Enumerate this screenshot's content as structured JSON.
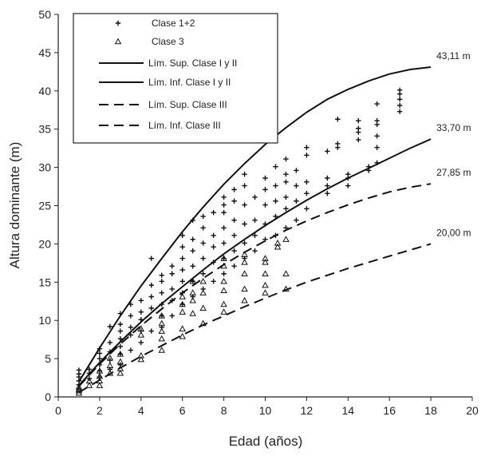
{
  "chart_data": {
    "type": "scatter",
    "xlabel": "Edad (años)",
    "ylabel": "Altura dominante (m)",
    "xlim": [
      0,
      20
    ],
    "ylim": [
      0,
      50
    ],
    "xticks": [
      0,
      2,
      4,
      6,
      8,
      10,
      12,
      14,
      16,
      18,
      20
    ],
    "yticks": [
      0,
      5,
      10,
      15,
      20,
      25,
      30,
      35,
      40,
      45,
      50
    ],
    "grid": false,
    "legend_position": "top-left",
    "legend": [
      {
        "label": "Clase 1+2",
        "marker": "plus"
      },
      {
        "label": "Clase 3",
        "marker": "triangle"
      },
      {
        "label": "Lím. Sup. Clase I y II",
        "style": "solid"
      },
      {
        "label": "Lím. Inf. Clase I y II",
        "style": "solid"
      },
      {
        "label": "Lím. Sup. Clase III",
        "style": "dashed"
      },
      {
        "label": "Lím. Inf. Clase III",
        "style": "dashed"
      }
    ],
    "curves": [
      {
        "name": "Lím. Sup. Clase I y II",
        "style": "solid",
        "end_label": "43,11 m",
        "x": [
          1,
          2,
          3,
          4,
          5,
          6,
          7,
          8,
          9,
          10,
          11,
          12,
          13,
          14,
          15,
          16,
          17,
          18
        ],
        "y": [
          2.0,
          6.4,
          10.6,
          14.5,
          18.1,
          21.6,
          24.8,
          27.8,
          30.5,
          33.0,
          35.2,
          37.2,
          38.9,
          40.2,
          41.3,
          42.2,
          42.8,
          43.11
        ]
      },
      {
        "name": "Lím. Inf. Clase I y II",
        "style": "solid",
        "end_label": "33,70 m",
        "x": [
          1,
          2,
          3,
          4,
          5,
          6,
          7,
          8,
          9,
          10,
          11,
          12,
          13,
          14,
          15,
          16,
          17,
          18
        ],
        "y": [
          1.5,
          4.5,
          7.2,
          9.8,
          12.2,
          14.4,
          16.6,
          18.7,
          20.6,
          22.4,
          24.1,
          25.7,
          27.2,
          28.6,
          29.9,
          31.2,
          32.5,
          33.7
        ]
      },
      {
        "name": "Lím. Sup. Clase III",
        "style": "dashed",
        "end_label": "27,85 m",
        "x": [
          1,
          2,
          3,
          4,
          5,
          6,
          7,
          8,
          9,
          10,
          11,
          12,
          13,
          14,
          15,
          16,
          17,
          18
        ],
        "y": [
          1.4,
          4.3,
          6.9,
          9.3,
          11.5,
          13.6,
          15.5,
          17.3,
          18.9,
          20.4,
          21.8,
          23.0,
          24.1,
          25.1,
          26.0,
          26.8,
          27.4,
          27.85
        ]
      },
      {
        "name": "Lím. Inf. Clase III",
        "style": "dashed",
        "end_label": "20,00 m",
        "x": [
          1,
          2,
          3,
          4,
          5,
          6,
          7,
          8,
          9,
          10,
          11,
          12,
          13,
          14,
          15,
          16,
          17,
          18
        ],
        "y": [
          0.6,
          2.2,
          3.8,
          5.3,
          6.7,
          8.1,
          9.4,
          10.6,
          11.8,
          12.9,
          14.0,
          15.0,
          15.9,
          16.8,
          17.6,
          18.4,
          19.2,
          20.0
        ]
      }
    ],
    "series": [
      {
        "name": "Clase 1+2",
        "marker": "plus",
        "points": [
          [
            1,
            1.6
          ],
          [
            1,
            2.1
          ],
          [
            1,
            2.6
          ],
          [
            1,
            3.0
          ],
          [
            1,
            3.5
          ],
          [
            1.5,
            2.4
          ],
          [
            1.5,
            3.1
          ],
          [
            1.5,
            3.6
          ],
          [
            2,
            2.6
          ],
          [
            2,
            3.4
          ],
          [
            2,
            4.2
          ],
          [
            2,
            5.0
          ],
          [
            2,
            5.7
          ],
          [
            2,
            6.3
          ],
          [
            2.5,
            3.6
          ],
          [
            2.5,
            4.8
          ],
          [
            2.5,
            5.9
          ],
          [
            2.5,
            7.1
          ],
          [
            2.5,
            9.2
          ],
          [
            3,
            4.2
          ],
          [
            3,
            5.6
          ],
          [
            3,
            6.6
          ],
          [
            3,
            7.6
          ],
          [
            3,
            8.6
          ],
          [
            3,
            9.5
          ],
          [
            3,
            10.9
          ],
          [
            3.5,
            6.1
          ],
          [
            3.5,
            8.1
          ],
          [
            3.5,
            9.1
          ],
          [
            3.5,
            10.6
          ],
          [
            3.5,
            12.1
          ],
          [
            4,
            7.1
          ],
          [
            4,
            8.6
          ],
          [
            4,
            10.1
          ],
          [
            4,
            11.1
          ],
          [
            4,
            12.6
          ],
          [
            4.5,
            8.6
          ],
          [
            4.5,
            11.6
          ],
          [
            4.5,
            13.1
          ],
          [
            4.5,
            14.6
          ],
          [
            4.5,
            18.1
          ],
          [
            5,
            9.1
          ],
          [
            5,
            10.6
          ],
          [
            5,
            12.1
          ],
          [
            5,
            13.6
          ],
          [
            5,
            15.1
          ],
          [
            5,
            15.9
          ],
          [
            5.5,
            10.6
          ],
          [
            5.5,
            12.6
          ],
          [
            5.5,
            14.1
          ],
          [
            5.5,
            16.1
          ],
          [
            5.5,
            17.1
          ],
          [
            6,
            12.1
          ],
          [
            6,
            13.6
          ],
          [
            6,
            15.1
          ],
          [
            6,
            16.6
          ],
          [
            6,
            18.1
          ],
          [
            6,
            19.6
          ],
          [
            6,
            21.1
          ],
          [
            6.5,
            13.1
          ],
          [
            6.5,
            15.1
          ],
          [
            6.5,
            17.1
          ],
          [
            6.5,
            19.1
          ],
          [
            6.5,
            20.6
          ],
          [
            6.5,
            23.1
          ],
          [
            7,
            14.1
          ],
          [
            7,
            16.1
          ],
          [
            7,
            18.1
          ],
          [
            7,
            20.1
          ],
          [
            7,
            22.1
          ],
          [
            7,
            23.6
          ],
          [
            7.5,
            15.1
          ],
          [
            7.5,
            17.6
          ],
          [
            7.5,
            19.6
          ],
          [
            7.5,
            21.1
          ],
          [
            7.5,
            24.1
          ],
          [
            8,
            16.1
          ],
          [
            8,
            18.1
          ],
          [
            8,
            20.1
          ],
          [
            8,
            22.1
          ],
          [
            8,
            24.1
          ],
          [
            8,
            25.1
          ],
          [
            8,
            26.1
          ],
          [
            8.5,
            17.1
          ],
          [
            8.5,
            19.1
          ],
          [
            8.5,
            21.1
          ],
          [
            8.5,
            23.1
          ],
          [
            8.5,
            25.6
          ],
          [
            8.5,
            27.1
          ],
          [
            9,
            18.1
          ],
          [
            9,
            20.1
          ],
          [
            9,
            22.6
          ],
          [
            9,
            25.1
          ],
          [
            9,
            27.6
          ],
          [
            9,
            29.1
          ],
          [
            9.5,
            19.1
          ],
          [
            9.5,
            21.1
          ],
          [
            9.5,
            23.1
          ],
          [
            9.5,
            26.1
          ],
          [
            10,
            20.6
          ],
          [
            10,
            22.6
          ],
          [
            10,
            25.1
          ],
          [
            10,
            27.1
          ],
          [
            10,
            28.6
          ],
          [
            10.5,
            21.1
          ],
          [
            10.5,
            23.6
          ],
          [
            10.5,
            25.6
          ],
          [
            10.5,
            27.6
          ],
          [
            10.5,
            30.1
          ],
          [
            11,
            22.1
          ],
          [
            11,
            24.6
          ],
          [
            11,
            26.1
          ],
          [
            11,
            28.1
          ],
          [
            11,
            29.1
          ],
          [
            11,
            31.1
          ],
          [
            11.5,
            23.1
          ],
          [
            11.5,
            25.6
          ],
          [
            11.5,
            27.6
          ],
          [
            11.5,
            29.6
          ],
          [
            12,
            24.6
          ],
          [
            12,
            26.6
          ],
          [
            12,
            28.1
          ],
          [
            12,
            31.6
          ],
          [
            12,
            32.6
          ],
          [
            13,
            26.6
          ],
          [
            13,
            27.6
          ],
          [
            13,
            28.6
          ],
          [
            13,
            32.1
          ],
          [
            13.5,
            32.6
          ],
          [
            13.5,
            33.1
          ],
          [
            13.5,
            36.3
          ],
          [
            14,
            27.6
          ],
          [
            14,
            28.6
          ],
          [
            14,
            29.1
          ],
          [
            14.5,
            33.6
          ],
          [
            14.5,
            34.6
          ],
          [
            14.5,
            35.1
          ],
          [
            14.5,
            36.1
          ],
          [
            15,
            29.6
          ],
          [
            15,
            30.1
          ],
          [
            15.4,
            30.6
          ],
          [
            15.4,
            32.6
          ],
          [
            15.4,
            34.1
          ],
          [
            15.4,
            35.6
          ],
          [
            15.4,
            36.1
          ],
          [
            15.4,
            38.3
          ],
          [
            16.5,
            37.3
          ],
          [
            16.5,
            38.1
          ],
          [
            16.5,
            38.9
          ],
          [
            16.5,
            39.6
          ],
          [
            16.5,
            40.1
          ]
        ]
      },
      {
        "name": "Clase 3",
        "marker": "triangle",
        "points": [
          [
            1,
            0.5
          ],
          [
            1,
            0.8
          ],
          [
            1,
            1.0
          ],
          [
            1,
            1.3
          ],
          [
            1.5,
            1.5
          ],
          [
            1.5,
            2.1
          ],
          [
            2,
            1.5
          ],
          [
            2,
            2.1
          ],
          [
            2,
            2.7
          ],
          [
            2,
            3.4
          ],
          [
            2.5,
            3.1
          ],
          [
            2.5,
            4.1
          ],
          [
            2.5,
            5.1
          ],
          [
            3,
            3.1
          ],
          [
            3,
            3.7
          ],
          [
            3,
            4.6
          ],
          [
            3,
            5.6
          ],
          [
            4,
            4.9
          ],
          [
            4,
            5.4
          ],
          [
            4,
            8.1
          ],
          [
            4,
            8.9
          ],
          [
            5,
            6.1
          ],
          [
            5,
            7.6
          ],
          [
            5,
            8.6
          ],
          [
            5,
            9.6
          ],
          [
            5,
            10.6
          ],
          [
            6,
            7.9
          ],
          [
            6,
            8.9
          ],
          [
            6,
            11.1
          ],
          [
            6,
            12.1
          ],
          [
            6,
            13.1
          ],
          [
            6.5,
            10.9
          ],
          [
            6.5,
            12.6
          ],
          [
            6.5,
            13.6
          ],
          [
            6.5,
            15.1
          ],
          [
            7,
            9.6
          ],
          [
            7,
            11.6
          ],
          [
            7,
            13.6
          ],
          [
            7,
            15.1
          ],
          [
            8,
            11.1
          ],
          [
            8,
            12.1
          ],
          [
            8,
            13.9
          ],
          [
            8,
            15.1
          ],
          [
            8,
            17.1
          ],
          [
            8,
            18.1
          ],
          [
            9,
            12.6
          ],
          [
            9,
            14.1
          ],
          [
            9,
            16.1
          ],
          [
            9,
            17.6
          ],
          [
            9,
            18.6
          ],
          [
            10,
            13.6
          ],
          [
            10,
            14.6
          ],
          [
            10,
            16.1
          ],
          [
            10,
            17.6
          ],
          [
            10,
            18.1
          ],
          [
            10.6,
            19.6
          ],
          [
            10.6,
            20.1
          ],
          [
            11,
            14.1
          ],
          [
            11,
            16.1
          ],
          [
            11,
            20.6
          ]
        ]
      }
    ]
  }
}
